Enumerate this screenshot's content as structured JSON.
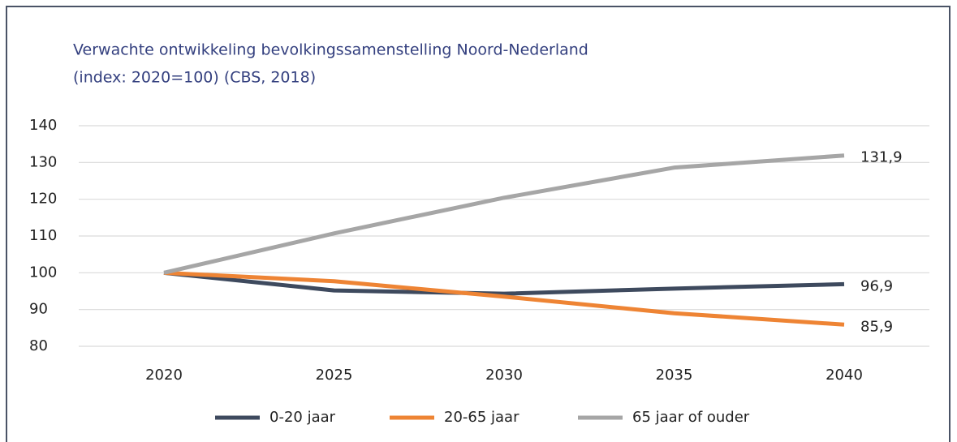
{
  "chart_data": {
    "type": "line",
    "title": "Verwachte ontwikkeling bevolkingssamenstelling Noord-Nederland",
    "subtitle": "(index: 2020=100) (CBS, 2018)",
    "categories": [
      "2020",
      "2025",
      "2030",
      "2035",
      "2040"
    ],
    "series": [
      {
        "name": "0-20 jaar",
        "color": "#3e4a5e",
        "values": [
          100,
          95.2,
          94.3,
          95.7,
          96.9
        ],
        "value_labels": [
          null,
          null,
          null,
          null,
          "96,9"
        ]
      },
      {
        "name": "20-65 jaar",
        "color": "#ee8434",
        "values": [
          100,
          97.7,
          93.5,
          89.0,
          85.9
        ],
        "value_labels": [
          null,
          null,
          null,
          null,
          "85,9"
        ]
      },
      {
        "name": "65 jaar of ouder",
        "color": "#a6a6a6",
        "values": [
          100,
          110.7,
          120.4,
          128.6,
          131.9
        ],
        "value_labels": [
          null,
          null,
          null,
          null,
          "131,9"
        ]
      }
    ],
    "ylim": [
      80,
      140
    ],
    "yticks": [
      80,
      90,
      100,
      110,
      120,
      130,
      140
    ],
    "grid": true,
    "legend": "bottom"
  }
}
